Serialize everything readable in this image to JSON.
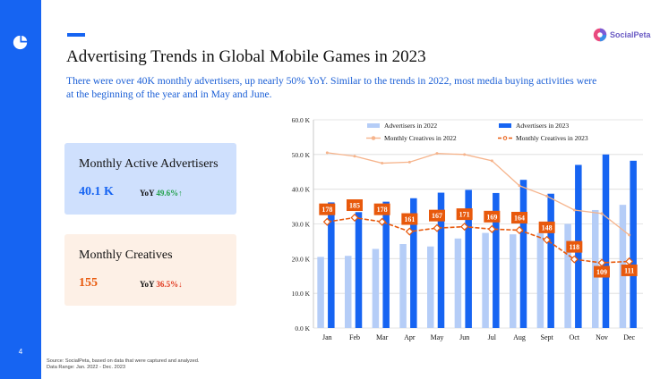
{
  "page": {
    "number": "4"
  },
  "brand": {
    "name": "SocialPeta"
  },
  "header": {
    "title": "Advertising Trends in Global Mobile Games in 2023",
    "subtitle": "There were over 40K monthly advertisers, up nearly 50% YoY. Similar to the trends in 2022, most media buying activities were at the beginning of the year and in May and June."
  },
  "cards": {
    "advertisers": {
      "title": "Monthly Active Advertisers",
      "value": "40.1 K",
      "yoy_label": "YoY",
      "yoy_value": "49.6%↑",
      "value_color": "#1664f2"
    },
    "creatives": {
      "title": "Monthly Creatives",
      "value": "155",
      "yoy_label": "YoY",
      "yoy_value": "36.5%↓",
      "value_color": "#e8590c"
    }
  },
  "colors": {
    "advertisers_2022": "#b5cdf7",
    "advertisers_2023": "#1664f2",
    "creatives_2022": "#f6b48c",
    "creatives_2023": "#e8590c",
    "sidebar": "#1664f2"
  },
  "chart_data": {
    "type": "bar",
    "categories": [
      "Jan",
      "Feb",
      "Mar",
      "Apr",
      "May",
      "Jun",
      "Jul",
      "Aug",
      "Sept",
      "Oct",
      "Nov",
      "Dec"
    ],
    "series": [
      {
        "name": "Advertisers in 2022",
        "kind": "bar",
        "unit": "K",
        "values": [
          20.5,
          20.8,
          22.8,
          24.2,
          23.5,
          25.8,
          27.4,
          27.0,
          27.4,
          30.0,
          34.0,
          35.5
        ]
      },
      {
        "name": "Advertisers in 2023",
        "kind": "bar",
        "unit": "K",
        "values": [
          36.2,
          33.4,
          36.4,
          37.4,
          39.0,
          39.8,
          38.9,
          42.7,
          38.7,
          47.0,
          50.0,
          48.2
        ]
      },
      {
        "name": "Monthly Creatives in 2022",
        "kind": "line",
        "style": "solid",
        "unit": "K",
        "values": [
          50.5,
          49.5,
          47.5,
          47.8,
          50.3,
          50.0,
          48.2,
          41.0,
          38.0,
          34.0,
          33.0,
          26.8
        ]
      },
      {
        "name": "Monthly Creatives in 2023",
        "kind": "line",
        "style": "dashed",
        "unit": "K",
        "values": [
          30.6,
          31.8,
          30.6,
          27.8,
          28.8,
          29.2,
          28.5,
          28.2,
          25.4,
          19.8,
          18.8,
          19.2
        ],
        "labels": [
          "178",
          "185",
          "178",
          "161",
          "167",
          "171",
          "169",
          "164",
          "148",
          "118",
          "109",
          "111"
        ]
      }
    ],
    "ylim": [
      0,
      60
    ],
    "yticks": [
      "0.0 K",
      "10.0 K",
      "20.0 K",
      "30.0 K",
      "40.0 K",
      "50.0 K",
      "60.0 K"
    ],
    "grid": true,
    "legend": "top"
  },
  "source": {
    "line1": "Source: SocialPeta, based on data that were captured and analyzed.",
    "line2": "Data Range: Jan. 2022 - Dec. 2023"
  }
}
